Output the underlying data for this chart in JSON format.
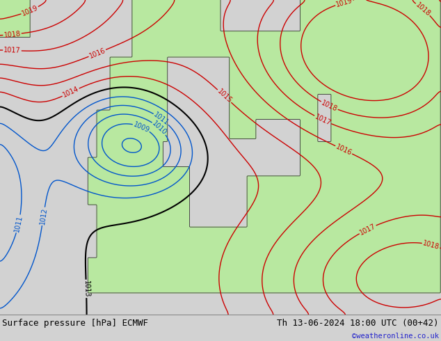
{
  "title_left": "Surface pressure [hPa] ECMWF",
  "title_right": "Th 13-06-2024 18:00 UTC (00+42)",
  "copyright": "©weatheronline.co.uk",
  "bg_color": "#d2d2d2",
  "land_color": "#b8e8a0",
  "footer_bg": "#c8c8c8",
  "contour_high_color": "#cc0000",
  "contour_low_color": "#0055cc",
  "contour_mid_color": "#000000",
  "label_fontsize": 7,
  "footer_fontsize": 9,
  "mid_level": 1013
}
